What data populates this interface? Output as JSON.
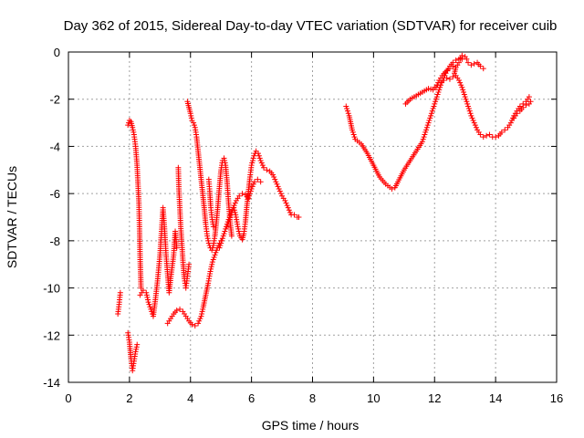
{
  "chart_data": {
    "type": "scatter",
    "title": "Day 362 of 2015, Sidereal Day-to-day VTEC variation (SDTVAR) for receiver cuib",
    "xlabel": "GPS time / hours",
    "ylabel": "SDTVAR / TECUs",
    "xlim": [
      0,
      16
    ],
    "ylim": [
      -14,
      0
    ],
    "xticks": [
      "0",
      "2",
      "4",
      "6",
      "8",
      "10",
      "12",
      "14",
      "16"
    ],
    "yticks": [
      "0",
      "-2",
      "-4",
      "-6",
      "-8",
      "-10",
      "-12",
      "-14"
    ],
    "grid": true,
    "marker": "+",
    "series": [
      {
        "name": "SDTVAR",
        "color": "#ff0000",
        "segments": [
          [
            [
              1.62,
              -11.1
            ],
            [
              1.66,
              -10.7
            ],
            [
              1.7,
              -10.2
            ]
          ],
          [
            [
              1.95,
              -11.9
            ],
            [
              2.0,
              -12.3
            ],
            [
              2.05,
              -13.0
            ],
            [
              2.1,
              -13.5
            ],
            [
              2.15,
              -13.1
            ],
            [
              2.2,
              -12.7
            ],
            [
              2.25,
              -12.4
            ]
          ],
          [
            [
              1.95,
              -3.1
            ],
            [
              2.0,
              -2.9
            ],
            [
              2.05,
              -2.95
            ],
            [
              2.1,
              -3.2
            ],
            [
              2.15,
              -3.5
            ],
            [
              2.2,
              -4.0
            ],
            [
              2.25,
              -4.8
            ],
            [
              2.28,
              -5.6
            ],
            [
              2.31,
              -6.4
            ],
            [
              2.33,
              -7.5
            ],
            [
              2.35,
              -8.8
            ],
            [
              2.38,
              -10.0
            ]
          ],
          [
            [
              2.35,
              -10.3
            ],
            [
              2.45,
              -10.1
            ],
            [
              2.55,
              -10.2
            ],
            [
              2.62,
              -10.6
            ],
            [
              2.7,
              -10.9
            ],
            [
              2.78,
              -11.2
            ],
            [
              2.85,
              -10.5
            ],
            [
              2.92,
              -9.7
            ],
            [
              3.0,
              -8.6
            ],
            [
              3.05,
              -7.6
            ],
            [
              3.1,
              -6.6
            ],
            [
              3.15,
              -7.5
            ],
            [
              3.2,
              -8.6
            ],
            [
              3.25,
              -9.4
            ],
            [
              3.3,
              -10.2
            ],
            [
              3.35,
              -9.6
            ],
            [
              3.45,
              -8.6
            ],
            [
              3.5,
              -7.6
            ],
            [
              3.55,
              -8.3
            ]
          ],
          [
            [
              3.6,
              -4.9
            ],
            [
              3.62,
              -5.8
            ],
            [
              3.65,
              -6.6
            ],
            [
              3.68,
              -7.4
            ],
            [
              3.72,
              -8.2
            ],
            [
              3.76,
              -9.0
            ],
            [
              3.8,
              -9.6
            ],
            [
              3.85,
              -10.0
            ],
            [
              3.9,
              -9.5
            ],
            [
              3.95,
              -9.0
            ]
          ],
          [
            [
              3.25,
              -11.5
            ],
            [
              3.35,
              -11.3
            ],
            [
              3.45,
              -11.1
            ],
            [
              3.55,
              -10.95
            ],
            [
              3.65,
              -10.9
            ],
            [
              3.75,
              -11.0
            ],
            [
              3.85,
              -11.2
            ],
            [
              3.95,
              -11.4
            ],
            [
              4.05,
              -11.55
            ],
            [
              4.15,
              -11.6
            ],
            [
              4.25,
              -11.5
            ],
            [
              4.35,
              -11.2
            ],
            [
              4.42,
              -10.8
            ],
            [
              4.5,
              -10.3
            ],
            [
              4.58,
              -9.8
            ],
            [
              4.65,
              -9.3
            ],
            [
              4.72,
              -8.9
            ],
            [
              4.8,
              -8.6
            ],
            [
              4.88,
              -8.3
            ],
            [
              4.95,
              -8.1
            ],
            [
              5.0,
              -8.0
            ]
          ],
          [
            [
              3.9,
              -2.1
            ],
            [
              3.95,
              -2.35
            ],
            [
              4.0,
              -2.6
            ],
            [
              4.05,
              -2.9
            ],
            [
              4.1,
              -3.0
            ],
            [
              4.15,
              -3.2
            ],
            [
              4.2,
              -3.6
            ],
            [
              4.25,
              -4.2
            ],
            [
              4.3,
              -4.8
            ],
            [
              4.35,
              -5.4
            ],
            [
              4.4,
              -6.0
            ],
            [
              4.45,
              -6.6
            ],
            [
              4.5,
              -7.3
            ],
            [
              4.55,
              -7.8
            ],
            [
              4.6,
              -8.1
            ],
            [
              4.65,
              -8.3
            ],
            [
              4.7,
              -8.4
            ],
            [
              4.75,
              -8.2
            ],
            [
              4.8,
              -7.8
            ],
            [
              4.85,
              -7.2
            ],
            [
              4.9,
              -6.5
            ],
            [
              4.95,
              -5.7
            ],
            [
              5.0,
              -5.0
            ],
            [
              5.05,
              -4.6
            ],
            [
              5.1,
              -4.5
            ],
            [
              5.15,
              -4.8
            ],
            [
              5.2,
              -5.5
            ],
            [
              5.25,
              -6.4
            ],
            [
              5.3,
              -7.2
            ],
            [
              5.35,
              -7.8
            ]
          ],
          [
            [
              4.6,
              -5.4
            ],
            [
              4.63,
              -5.9
            ],
            [
              4.66,
              -6.5
            ],
            [
              4.7,
              -7.0
            ],
            [
              4.75,
              -7.4
            ]
          ],
          [
            [
              5.2,
              -7.4
            ],
            [
              5.3,
              -7.0
            ],
            [
              5.4,
              -6.6
            ],
            [
              5.5,
              -6.3
            ],
            [
              5.6,
              -6.1
            ],
            [
              5.7,
              -6.0
            ],
            [
              5.8,
              -6.05
            ],
            [
              5.9,
              -6.2
            ],
            [
              5.95,
              -6.0
            ],
            [
              6.0,
              -5.8
            ],
            [
              6.1,
              -5.5
            ],
            [
              6.2,
              -5.4
            ],
            [
              6.3,
              -5.5
            ]
          ],
          [
            [
              4.95,
              -8.3
            ],
            [
              5.05,
              -7.9
            ],
            [
              5.15,
              -7.5
            ],
            [
              5.25,
              -7.1
            ],
            [
              5.35,
              -6.8
            ],
            [
              5.42,
              -6.6
            ],
            [
              5.48,
              -6.9
            ],
            [
              5.55,
              -7.4
            ],
            [
              5.62,
              -7.8
            ],
            [
              5.7,
              -7.95
            ],
            [
              5.75,
              -7.7
            ],
            [
              5.8,
              -7.2
            ],
            [
              5.85,
              -6.5
            ],
            [
              5.9,
              -5.9
            ],
            [
              5.95,
              -5.3
            ],
            [
              6.0,
              -4.8
            ],
            [
              6.08,
              -4.4
            ],
            [
              6.15,
              -4.2
            ],
            [
              6.22,
              -4.3
            ],
            [
              6.3,
              -4.6
            ],
            [
              6.4,
              -4.9
            ],
            [
              6.5,
              -5.0
            ],
            [
              6.6,
              -5.05
            ],
            [
              6.7,
              -5.2
            ],
            [
              6.8,
              -5.5
            ],
            [
              6.9,
              -5.8
            ],
            [
              7.0,
              -6.1
            ],
            [
              7.1,
              -6.3
            ],
            [
              7.2,
              -6.6
            ],
            [
              7.3,
              -6.9
            ],
            [
              7.4,
              -6.9
            ],
            [
              7.5,
              -7.0
            ],
            [
              7.55,
              -7.0
            ]
          ],
          [
            [
              9.1,
              -2.3
            ],
            [
              9.2,
              -2.7
            ],
            [
              9.3,
              -3.3
            ],
            [
              9.4,
              -3.7
            ],
            [
              9.6,
              -3.9
            ],
            [
              9.8,
              -4.3
            ],
            [
              10.0,
              -4.8
            ],
            [
              10.2,
              -5.3
            ],
            [
              10.4,
              -5.6
            ],
            [
              10.6,
              -5.8
            ],
            [
              10.7,
              -5.75
            ],
            [
              10.8,
              -5.5
            ],
            [
              11.0,
              -5.0
            ],
            [
              11.2,
              -4.6
            ],
            [
              11.4,
              -4.2
            ],
            [
              11.6,
              -3.8
            ],
            [
              11.7,
              -3.4
            ],
            [
              11.8,
              -3.0
            ],
            [
              11.9,
              -2.6
            ],
            [
              12.0,
              -2.2
            ],
            [
              12.1,
              -1.8
            ],
            [
              12.2,
              -1.4
            ],
            [
              12.3,
              -1.1
            ],
            [
              12.4,
              -0.8
            ],
            [
              12.5,
              -0.6
            ],
            [
              12.6,
              -0.45
            ],
            [
              12.7,
              -0.35
            ],
            [
              12.8,
              -0.3
            ],
            [
              12.85,
              -0.25
            ],
            [
              12.9,
              -0.3
            ]
          ],
          [
            [
              11.05,
              -2.2
            ],
            [
              11.2,
              -2.0
            ],
            [
              11.4,
              -1.85
            ],
            [
              11.6,
              -1.7
            ],
            [
              11.8,
              -1.55
            ],
            [
              11.95,
              -1.6
            ],
            [
              12.05,
              -1.5
            ],
            [
              12.15,
              -1.2
            ],
            [
              12.25,
              -1.0
            ],
            [
              12.35,
              -0.85
            ],
            [
              12.5,
              -0.7
            ],
            [
              12.6,
              -0.6
            ]
          ],
          [
            [
              12.0,
              -1.5
            ],
            [
              12.1,
              -1.4
            ],
            [
              12.2,
              -1.3
            ],
            [
              12.3,
              -1.2
            ],
            [
              12.4,
              -1.1
            ],
            [
              12.5,
              -1.15
            ],
            [
              12.6,
              -1.05
            ],
            [
              12.65,
              -0.9
            ],
            [
              12.7,
              -0.65
            ],
            [
              12.8,
              -0.45
            ],
            [
              12.85,
              -0.3
            ],
            [
              12.9,
              -0.15
            ],
            [
              13.0,
              -0.2
            ],
            [
              13.05,
              -0.3
            ],
            [
              13.1,
              -0.45
            ],
            [
              13.2,
              -0.55
            ],
            [
              13.3,
              -0.5
            ],
            [
              13.4,
              -0.45
            ],
            [
              13.5,
              -0.6
            ],
            [
              13.6,
              -0.7
            ]
          ],
          [
            [
              12.7,
              -1.0
            ],
            [
              12.8,
              -1.2
            ],
            [
              12.9,
              -1.5
            ],
            [
              13.0,
              -1.9
            ],
            [
              13.1,
              -2.3
            ],
            [
              13.2,
              -2.7
            ],
            [
              13.3,
              -3.0
            ],
            [
              13.4,
              -3.3
            ],
            [
              13.5,
              -3.5
            ],
            [
              13.6,
              -3.6
            ],
            [
              13.7,
              -3.55
            ],
            [
              13.8,
              -3.5
            ],
            [
              13.9,
              -3.6
            ],
            [
              14.0,
              -3.6
            ],
            [
              14.1,
              -3.55
            ],
            [
              14.2,
              -3.4
            ],
            [
              14.3,
              -3.3
            ],
            [
              14.4,
              -3.2
            ],
            [
              14.5,
              -3.0
            ],
            [
              14.6,
              -2.7
            ],
            [
              14.7,
              -2.5
            ],
            [
              14.8,
              -2.3
            ],
            [
              14.9,
              -2.2
            ],
            [
              15.0,
              -2.1
            ],
            [
              15.1,
              -1.9
            ]
          ],
          [
            [
              14.6,
              -2.8
            ],
            [
              14.7,
              -2.6
            ],
            [
              14.8,
              -2.5
            ],
            [
              14.9,
              -2.35
            ],
            [
              15.0,
              -2.25
            ],
            [
              15.1,
              -2.2
            ],
            [
              15.15,
              -2.1
            ]
          ]
        ]
      }
    ]
  }
}
